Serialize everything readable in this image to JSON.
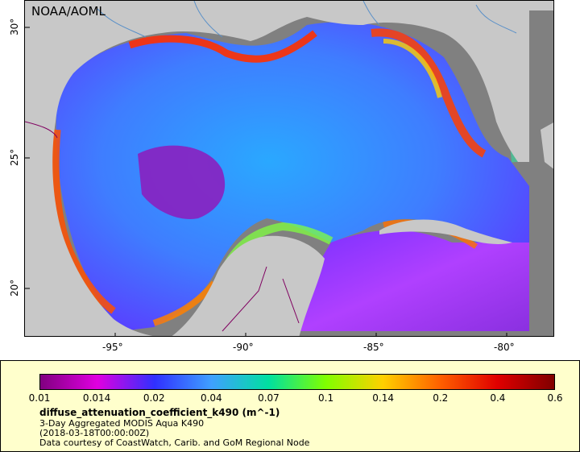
{
  "map": {
    "credit": "NOAA/AOML",
    "land_color": "#c8c8c8",
    "nodata_color": "#808080",
    "x_ticks": [
      "-95°",
      "-90°",
      "-85°",
      "-80°"
    ],
    "y_ticks": [
      "30°",
      "25°",
      "20°"
    ]
  },
  "legend": {
    "colorbar_labels": [
      "0.01",
      "0.014",
      "0.02",
      "0.04",
      "0.07",
      "0.1",
      "0.14",
      "0.2",
      "0.4",
      "0.6"
    ],
    "colorbar_colors": [
      "#800080",
      "#e000e0",
      "#3030ff",
      "#3fa0ff",
      "#00e0a0",
      "#80ff00",
      "#ffd000",
      "#ff6000",
      "#e00000",
      "#800000"
    ],
    "variable": "diffuse_attenuation_coefficient_k490 (m^-1)",
    "dataset": "3-Day Aggregated MODIS Aqua K490",
    "time": "(2018-03-18T00:00:00Z)",
    "courtesy": "Data courtesy of CoastWatch, Carib. and GoM Regional Node"
  }
}
